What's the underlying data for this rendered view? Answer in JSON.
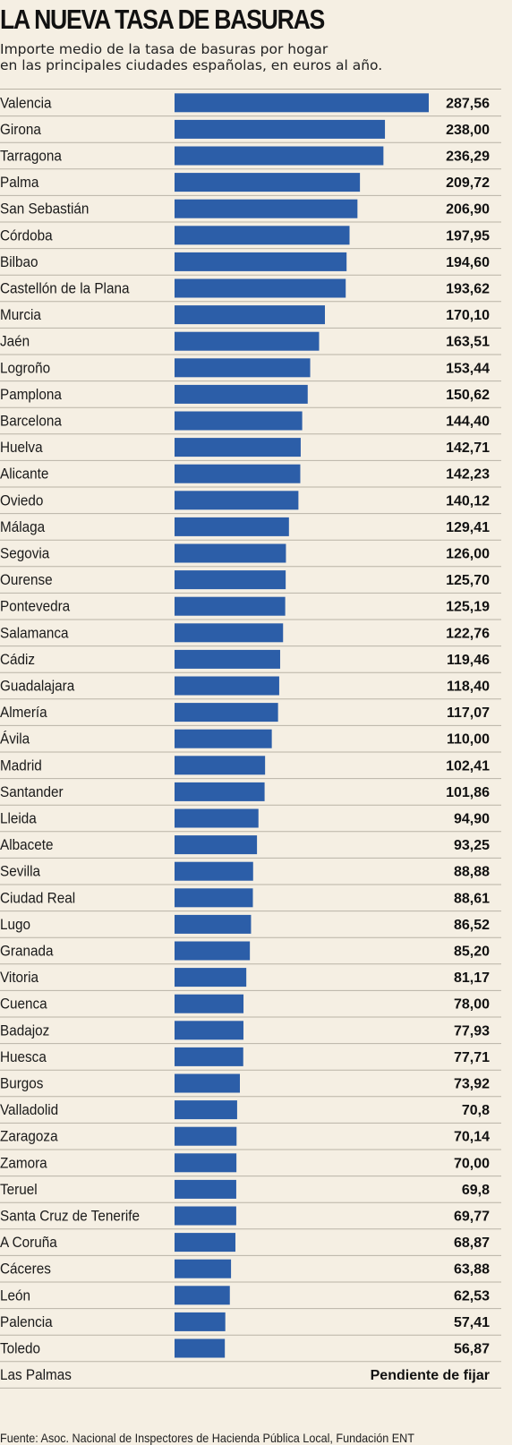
{
  "title": "LA NUEVA TASA DE BASURAS",
  "subtitle_lines": [
    "Importe medio de la tasa de basuras por hogar",
    "en las principales ciudades españolas, en euros al año."
  ],
  "source": "Fuente: Asoc. Nacional de Inspectores de Hacienda Pública Local, Fundación ENT",
  "colors": {
    "bar": "#2c5ea8",
    "background": "#f5efe3",
    "rule": "#b9b3a6"
  },
  "chart_data": {
    "type": "bar",
    "orientation": "horizontal",
    "title": "LA NUEVA TASA DE BASURAS",
    "xlabel": "",
    "ylabel": "",
    "xlim": [
      0,
      287.56
    ],
    "grid": false,
    "legend": "none",
    "categories": [
      "Valencia",
      "Girona",
      "Tarragona",
      "Palma",
      "San Sebastián",
      "Córdoba",
      "Bilbao",
      "Castellón de la Plana",
      "Murcia",
      "Jaén",
      "Logroño",
      "Pamplona",
      "Barcelona",
      "Huelva",
      "Alicante",
      "Oviedo",
      "Málaga",
      "Segovia",
      "Ourense",
      "Pontevedra",
      "Salamanca",
      "Cádiz",
      "Guadalajara",
      "Almería",
      "Ávila",
      "Madrid",
      "Santander",
      "Lleida",
      "Albacete",
      "Sevilla",
      "Ciudad Real",
      "Lugo",
      "Granada",
      "Vitoria",
      "Cuenca",
      "Badajoz",
      "Huesca",
      "Burgos",
      "Valladolid",
      "Zaragoza",
      "Zamora",
      "Teruel",
      "Santa Cruz de Tenerife",
      "A Coruña",
      "Cáceres",
      "León",
      "Palencia",
      "Toledo",
      "Las Palmas"
    ],
    "values": [
      287.56,
      238.0,
      236.29,
      209.72,
      206.9,
      197.95,
      194.6,
      193.62,
      170.1,
      163.51,
      153.44,
      150.62,
      144.4,
      142.71,
      142.23,
      140.12,
      129.41,
      126.0,
      125.7,
      125.19,
      122.76,
      119.46,
      118.4,
      117.07,
      110.0,
      102.41,
      101.86,
      94.9,
      93.25,
      88.88,
      88.61,
      86.52,
      85.2,
      81.17,
      78.0,
      77.93,
      77.71,
      73.92,
      70.8,
      70.14,
      70.0,
      69.8,
      69.77,
      68.87,
      63.88,
      62.53,
      57.41,
      56.87,
      null
    ],
    "value_labels": [
      "287,56",
      "238,00",
      "236,29",
      "209,72",
      "206,90",
      "197,95",
      "194,60",
      "193,62",
      "170,10",
      "163,51",
      "153,44",
      "150,62",
      "144,40",
      "142,71",
      "142,23",
      "140,12",
      "129,41",
      "126,00",
      "125,70",
      "125,19",
      "122,76",
      "119,46",
      "118,40",
      "117,07",
      "110,00",
      "102,41",
      "101,86",
      "94,90",
      "93,25",
      "88,88",
      "88,61",
      "86,52",
      "85,20",
      "81,17",
      "78,00",
      "77,93",
      "77,71",
      "73,92",
      "70,8",
      "70,14",
      "70,00",
      "69,8",
      "69,77",
      "68,87",
      "63,88",
      "62,53",
      "57,41",
      "56,87",
      "Pendiente de fijar"
    ]
  }
}
